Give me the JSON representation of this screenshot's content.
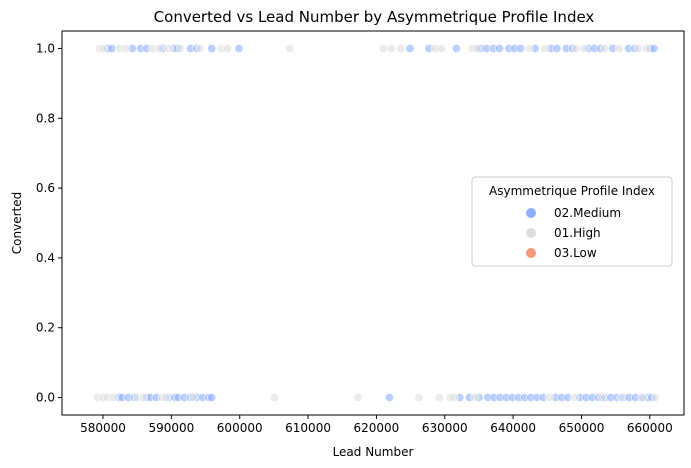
{
  "colors": {
    "medium": "#8db0fe",
    "high": "#dddddd",
    "low": "#f4987a",
    "frame": "#000000"
  },
  "chart_data": {
    "type": "scatter",
    "title": "Converted vs Lead Number by Asymmetrique Profile Index",
    "xlabel": "Lead Number",
    "ylabel": "Converted",
    "xlim": [
      574000,
      665000
    ],
    "ylim": [
      -0.05,
      1.05
    ],
    "xticks": [
      580000,
      590000,
      600000,
      610000,
      620000,
      630000,
      640000,
      650000,
      660000
    ],
    "xtick_labels": [
      "580000",
      "590000",
      "600000",
      "610000",
      "620000",
      "630000",
      "640000",
      "650000",
      "660000"
    ],
    "yticks": [
      0.0,
      0.2,
      0.4,
      0.6,
      0.8,
      1.0
    ],
    "ytick_labels": [
      "0.0",
      "0.2",
      "0.4",
      "0.6",
      "0.8",
      "1.0"
    ],
    "grid": false,
    "legend": {
      "title": "Asymmetrique Profile Index",
      "position": "center-right",
      "entries": [
        "02.Medium",
        "01.High",
        "03.Low"
      ]
    },
    "series": [
      {
        "name": "02.Medium",
        "color_key": "medium",
        "points": [
          [
            580700,
            1
          ],
          [
            581300,
            1
          ],
          [
            584300,
            1
          ],
          [
            585500,
            1
          ],
          [
            586400,
            1
          ],
          [
            588700,
            1
          ],
          [
            590400,
            1
          ],
          [
            590900,
            1
          ],
          [
            592800,
            1
          ],
          [
            593700,
            1
          ],
          [
            595900,
            1
          ],
          [
            599900,
            1
          ],
          [
            624900,
            1
          ],
          [
            627700,
            1
          ],
          [
            631700,
            1
          ],
          [
            635200,
            1
          ],
          [
            636100,
            1
          ],
          [
            637100,
            1
          ],
          [
            638000,
            1
          ],
          [
            639400,
            1
          ],
          [
            640200,
            1
          ],
          [
            641100,
            1
          ],
          [
            643200,
            1
          ],
          [
            645500,
            1
          ],
          [
            646400,
            1
          ],
          [
            647800,
            1
          ],
          [
            648700,
            1
          ],
          [
            651000,
            1
          ],
          [
            651900,
            1
          ],
          [
            652800,
            1
          ],
          [
            654600,
            1
          ],
          [
            656900,
            1
          ],
          [
            657800,
            1
          ],
          [
            660100,
            1
          ],
          [
            660600,
            1
          ],
          [
            582300,
            0
          ],
          [
            582800,
            0
          ],
          [
            583700,
            0
          ],
          [
            584600,
            0
          ],
          [
            586400,
            0
          ],
          [
            586900,
            0
          ],
          [
            587800,
            0
          ],
          [
            589600,
            0
          ],
          [
            590500,
            0
          ],
          [
            591000,
            0
          ],
          [
            591900,
            0
          ],
          [
            592800,
            0
          ],
          [
            593700,
            0
          ],
          [
            594600,
            0
          ],
          [
            595500,
            0
          ],
          [
            595900,
            0
          ],
          [
            621900,
            0
          ],
          [
            632200,
            0
          ],
          [
            633600,
            0
          ],
          [
            635000,
            0
          ],
          [
            636300,
            0
          ],
          [
            637200,
            0
          ],
          [
            638100,
            0
          ],
          [
            639000,
            0
          ],
          [
            639900,
            0
          ],
          [
            640800,
            0
          ],
          [
            641700,
            0
          ],
          [
            642600,
            0
          ],
          [
            643500,
            0
          ],
          [
            644400,
            0
          ],
          [
            646200,
            0
          ],
          [
            647100,
            0
          ],
          [
            648000,
            0
          ],
          [
            649800,
            0
          ],
          [
            650700,
            0
          ],
          [
            651600,
            0
          ],
          [
            652500,
            0
          ],
          [
            653400,
            0
          ],
          [
            654300,
            0
          ],
          [
            655200,
            0
          ],
          [
            656100,
            0
          ],
          [
            657000,
            0
          ],
          [
            657900,
            0
          ],
          [
            658800,
            0
          ],
          [
            659700,
            0
          ],
          [
            660300,
            0
          ]
        ]
      },
      {
        "name": "01.High",
        "color_key": "high",
        "points": [
          [
            579500,
            1
          ],
          [
            580000,
            1
          ],
          [
            582400,
            1
          ],
          [
            583300,
            1
          ],
          [
            587300,
            1
          ],
          [
            588200,
            1
          ],
          [
            589600,
            1
          ],
          [
            591300,
            1
          ],
          [
            594200,
            1
          ],
          [
            597300,
            1
          ],
          [
            598200,
            1
          ],
          [
            607300,
            1
          ],
          [
            621000,
            1
          ],
          [
            622200,
            1
          ],
          [
            623600,
            1
          ],
          [
            628600,
            1
          ],
          [
            629500,
            1
          ],
          [
            634000,
            1
          ],
          [
            634700,
            1
          ],
          [
            642300,
            1
          ],
          [
            644600,
            1
          ],
          [
            649200,
            1
          ],
          [
            650400,
            1
          ],
          [
            653400,
            1
          ],
          [
            655500,
            1
          ],
          [
            658300,
            1
          ],
          [
            659500,
            1
          ],
          [
            579200,
            0
          ],
          [
            580000,
            0
          ],
          [
            580600,
            0
          ],
          [
            581500,
            0
          ],
          [
            585000,
            0
          ],
          [
            585900,
            0
          ],
          [
            588700,
            0
          ],
          [
            589200,
            0
          ],
          [
            593200,
            0
          ],
          [
            605100,
            0
          ],
          [
            617300,
            0
          ],
          [
            626200,
            0
          ],
          [
            629200,
            0
          ],
          [
            630800,
            0
          ],
          [
            631300,
            0
          ],
          [
            634400,
            0
          ],
          [
            645300,
            0
          ],
          [
            649000,
            0
          ],
          [
            653000,
            0
          ],
          [
            655800,
            0
          ],
          [
            659000,
            0
          ],
          [
            660800,
            0
          ]
        ]
      },
      {
        "name": "03.Low",
        "color_key": "low",
        "points": []
      }
    ]
  }
}
